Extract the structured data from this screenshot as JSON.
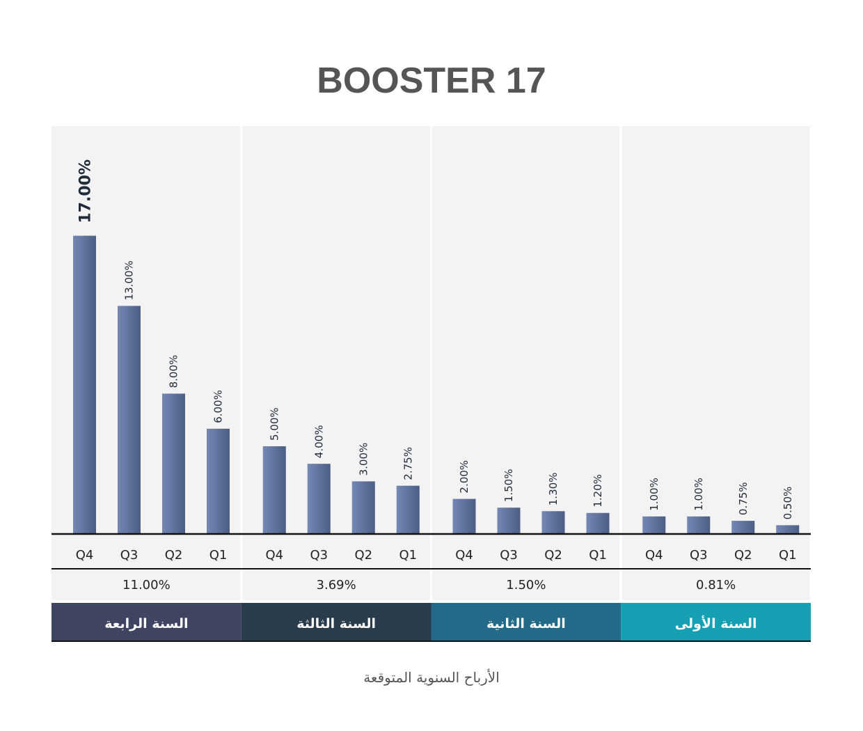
{
  "chart_data": {
    "type": "bar",
    "title": "BOOSTER 17",
    "caption": "الأرباح السنوية المتوقعة",
    "ylim": [
      0,
      18
    ],
    "value_unit": "%",
    "groups": [
      {
        "name": "السنة الرابعة",
        "average": "11.00%",
        "color": "#3f4560",
        "quarters": [
          {
            "q": "Q4",
            "value": 17.0,
            "label": "17.00%",
            "emphasis": true
          },
          {
            "q": "Q3",
            "value": 13.0,
            "label": "13.00%"
          },
          {
            "q": "Q2",
            "value": 8.0,
            "label": "8.00%"
          },
          {
            "q": "Q1",
            "value": 6.0,
            "label": "6.00%"
          }
        ]
      },
      {
        "name": "السنة الثالثة",
        "average": "3.69%",
        "color": "#2a3b4c",
        "quarters": [
          {
            "q": "Q4",
            "value": 5.0,
            "label": "5.00%"
          },
          {
            "q": "Q3",
            "value": 4.0,
            "label": "4.00%"
          },
          {
            "q": "Q2",
            "value": 3.0,
            "label": "3.00%"
          },
          {
            "q": "Q1",
            "value": 2.75,
            "label": "2.75%"
          }
        ]
      },
      {
        "name": "السنة الثانية",
        "average": "1.50%",
        "color": "#226a88",
        "quarters": [
          {
            "q": "Q4",
            "value": 2.0,
            "label": "2.00%"
          },
          {
            "q": "Q3",
            "value": 1.5,
            "label": "1.50%"
          },
          {
            "q": "Q2",
            "value": 1.3,
            "label": "1.30%"
          },
          {
            "q": "Q1",
            "value": 1.2,
            "label": "1.20%"
          }
        ]
      },
      {
        "name": "السنة الأولى",
        "average": "0.81%",
        "color": "#16a0b4",
        "quarters": [
          {
            "q": "Q4",
            "value": 1.0,
            "label": "1.00%"
          },
          {
            "q": "Q3",
            "value": 1.0,
            "label": "1.00%"
          },
          {
            "q": "Q2",
            "value": 0.75,
            "label": "0.75%"
          },
          {
            "q": "Q1",
            "value": 0.5,
            "label": "0.50%"
          }
        ]
      }
    ],
    "bar_color": "#6a7fa8",
    "panel_background": "#f3f3f3"
  }
}
